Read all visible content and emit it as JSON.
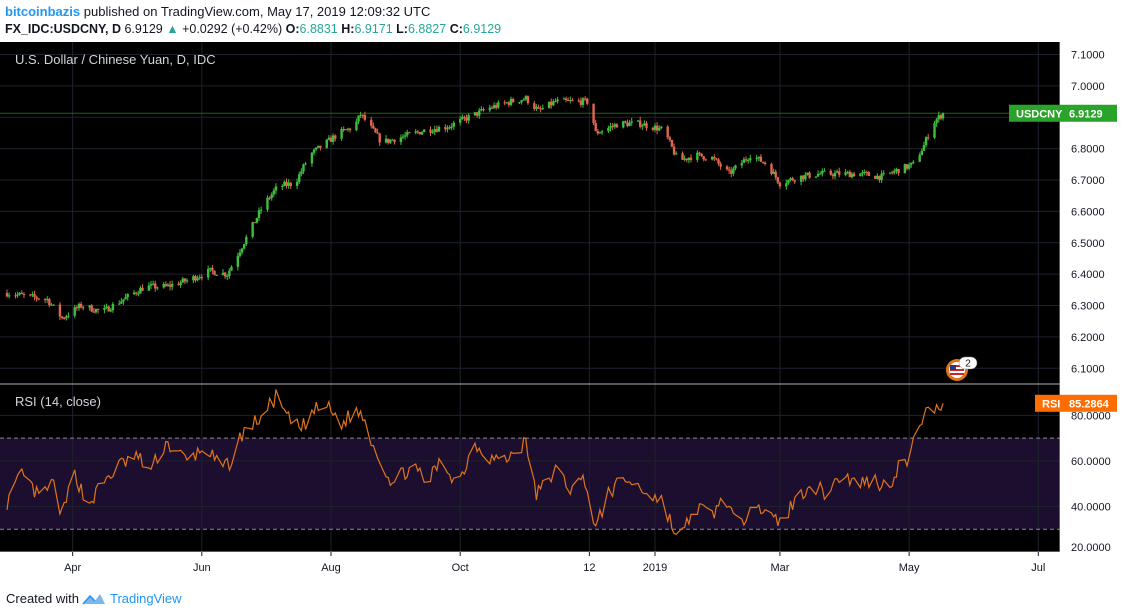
{
  "header": {
    "author": "bitcoinbazis",
    "published_text": "published on TradingView.com, May 17, 2019 12:09:32 UTC",
    "symbol_line": {
      "symbol": "FX_IDC:USDCNY, D",
      "last": "6.9129",
      "change_arrow": "▲",
      "change": "+0.0292 (+0.42%)",
      "o_label": "O:",
      "o_value": "6.8831",
      "h_label": "H:",
      "h_value": "6.9171",
      "l_label": "L:",
      "l_value": "6.8827",
      "c_label": "C:",
      "c_value": "6.9129"
    }
  },
  "footer": {
    "created_with": "Created with",
    "brand": "TradingView"
  },
  "colors": {
    "up": "#26a69a",
    "candle_up": "#3dbf3d",
    "candle_down": "#e0664d",
    "rsi_line": "#e0741c",
    "rsi_band": "#1c0e2e",
    "last_price_tag": "#2aa32a",
    "rsi_tag": "#ff6d00"
  },
  "chart_data": [
    {
      "type": "candlestick",
      "title": "U.S. Dollar / Chinese Yuan, D, IDC",
      "x_ticks": [
        "Apr",
        "Jun",
        "Aug",
        "Oct",
        "12",
        "2019",
        "Mar",
        "May",
        "Jul"
      ],
      "y_ticks": [
        "6.1000",
        "6.2000",
        "6.3000",
        "6.4000",
        "6.5000",
        "6.6000",
        "6.7000",
        "6.8000",
        "6.9000",
        "7.0000",
        "7.1000"
      ],
      "ylim": [
        6.05,
        7.14
      ],
      "last_price_label": "USDCNY",
      "last_price": "6.9129",
      "close_path": [
        [
          "2018-03-01",
          6.34
        ],
        [
          "2018-03-10",
          6.33
        ],
        [
          "2018-03-20",
          6.32
        ],
        [
          "2018-03-27",
          6.26
        ],
        [
          "2018-04-05",
          6.3
        ],
        [
          "2018-04-15",
          6.28
        ],
        [
          "2018-04-25",
          6.32
        ],
        [
          "2018-05-05",
          6.36
        ],
        [
          "2018-05-15",
          6.36
        ],
        [
          "2018-05-25",
          6.38
        ],
        [
          "2018-06-05",
          6.41
        ],
        [
          "2018-06-13",
          6.4
        ],
        [
          "2018-06-20",
          6.49
        ],
        [
          "2018-06-30",
          6.62
        ],
        [
          "2018-07-07",
          6.68
        ],
        [
          "2018-07-15",
          6.69
        ],
        [
          "2018-07-22",
          6.78
        ],
        [
          "2018-07-30",
          6.82
        ],
        [
          "2018-08-05",
          6.85
        ],
        [
          "2018-08-12",
          6.87
        ],
        [
          "2018-08-15",
          6.91
        ],
        [
          "2018-08-25",
          6.82
        ],
        [
          "2018-09-05",
          6.84
        ],
        [
          "2018-09-15",
          6.86
        ],
        [
          "2018-09-25",
          6.87
        ],
        [
          "2018-10-05",
          6.9
        ],
        [
          "2018-10-15",
          6.93
        ],
        [
          "2018-10-25",
          6.95
        ],
        [
          "2018-11-01",
          6.96
        ],
        [
          "2018-11-07",
          6.92
        ],
        [
          "2018-11-15",
          6.95
        ],
        [
          "2018-11-25",
          6.95
        ],
        [
          "2018-12-01",
          6.95
        ],
        [
          "2018-12-04",
          6.85
        ],
        [
          "2018-12-15",
          6.88
        ],
        [
          "2018-12-25",
          6.88
        ],
        [
          "2019-01-05",
          6.86
        ],
        [
          "2019-01-12",
          6.76
        ],
        [
          "2019-01-20",
          6.78
        ],
        [
          "2019-01-28",
          6.77
        ],
        [
          "2019-02-05",
          6.72
        ],
        [
          "2019-02-15",
          6.78
        ],
        [
          "2019-02-23",
          6.75
        ],
        [
          "2019-03-01",
          6.69
        ],
        [
          "2019-03-10",
          6.71
        ],
        [
          "2019-03-20",
          6.72
        ],
        [
          "2019-03-30",
          6.72
        ],
        [
          "2019-04-08",
          6.72
        ],
        [
          "2019-04-18",
          6.71
        ],
        [
          "2019-04-25",
          6.73
        ],
        [
          "2019-05-03",
          6.75
        ],
        [
          "2019-05-08",
          6.81
        ],
        [
          "2019-05-12",
          6.88
        ],
        [
          "2019-05-17",
          6.9129
        ]
      ]
    },
    {
      "type": "line",
      "title": "RSI (14, close)",
      "y_ticks": [
        "20.0000",
        "40.0000",
        "60.0000",
        "80.0000"
      ],
      "ylim": [
        20,
        92
      ],
      "bands": [
        30,
        70
      ],
      "last_value_label": "RSI",
      "last_value": "85.2864",
      "values_path": [
        [
          "2018-03-01",
          42
        ],
        [
          "2018-03-08",
          54
        ],
        [
          "2018-03-16",
          44
        ],
        [
          "2018-03-23",
          50
        ],
        [
          "2018-03-27",
          36
        ],
        [
          "2018-04-02",
          55
        ],
        [
          "2018-04-08",
          40
        ],
        [
          "2018-04-15",
          50
        ],
        [
          "2018-04-23",
          58
        ],
        [
          "2018-05-01",
          62
        ],
        [
          "2018-05-08",
          56
        ],
        [
          "2018-05-15",
          68
        ],
        [
          "2018-05-25",
          60
        ],
        [
          "2018-06-03",
          66
        ],
        [
          "2018-06-10",
          56
        ],
        [
          "2018-06-15",
          60
        ],
        [
          "2018-06-20",
          72
        ],
        [
          "2018-06-30",
          80
        ],
        [
          "2018-07-06",
          88
        ],
        [
          "2018-07-12",
          78
        ],
        [
          "2018-07-18",
          74
        ],
        [
          "2018-07-24",
          82
        ],
        [
          "2018-07-30",
          84
        ],
        [
          "2018-08-06",
          76
        ],
        [
          "2018-08-12",
          82
        ],
        [
          "2018-08-16",
          80
        ],
        [
          "2018-08-22",
          65
        ],
        [
          "2018-08-30",
          50
        ],
        [
          "2018-09-08",
          58
        ],
        [
          "2018-09-15",
          50
        ],
        [
          "2018-09-22",
          60
        ],
        [
          "2018-09-30",
          50
        ],
        [
          "2018-10-08",
          68
        ],
        [
          "2018-10-14",
          62
        ],
        [
          "2018-10-22",
          60
        ],
        [
          "2018-11-01",
          68
        ],
        [
          "2018-11-06",
          45
        ],
        [
          "2018-11-15",
          56
        ],
        [
          "2018-11-22",
          48
        ],
        [
          "2018-11-29",
          52
        ],
        [
          "2018-12-04",
          30
        ],
        [
          "2018-12-10",
          46
        ],
        [
          "2018-12-18",
          52
        ],
        [
          "2018-12-25",
          48
        ],
        [
          "2019-01-05",
          42
        ],
        [
          "2019-01-12",
          24
        ],
        [
          "2019-01-20",
          40
        ],
        [
          "2019-01-28",
          36
        ],
        [
          "2019-02-03",
          45
        ],
        [
          "2019-02-10",
          28
        ],
        [
          "2019-02-16",
          46
        ],
        [
          "2019-02-22",
          36
        ],
        [
          "2019-03-01",
          33
        ],
        [
          "2019-03-08",
          42
        ],
        [
          "2019-03-15",
          50
        ],
        [
          "2019-03-22",
          46
        ],
        [
          "2019-03-30",
          54
        ],
        [
          "2019-04-06",
          50
        ],
        [
          "2019-04-14",
          52
        ],
        [
          "2019-04-21",
          48
        ],
        [
          "2019-04-26",
          58
        ],
        [
          "2019-05-01",
          60
        ],
        [
          "2019-05-06",
          78
        ],
        [
          "2019-05-11",
          82
        ],
        [
          "2019-05-17",
          85.2864
        ]
      ]
    }
  ],
  "events": {
    "badge_count": "2"
  }
}
